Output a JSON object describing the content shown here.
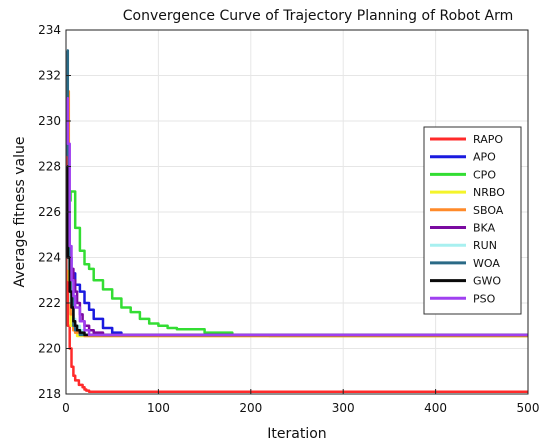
{
  "chart_data": {
    "type": "line",
    "title": "Convergence Curve of Trajectory Planning of Robot Arm",
    "xlabel": "Iteration",
    "ylabel": "Average fitness value",
    "xlim": [
      0,
      500
    ],
    "ylim": [
      218,
      234
    ],
    "xticks": [
      0,
      100,
      200,
      300,
      400,
      500
    ],
    "yticks": [
      218,
      220,
      222,
      224,
      226,
      228,
      230,
      232,
      234
    ],
    "grid": true,
    "legend_position": "right",
    "series": [
      {
        "name": "RAPO",
        "color": "#ff2a2a",
        "x": [
          1,
          2,
          4,
          6,
          8,
          10,
          14,
          18,
          20,
          22,
          25,
          30,
          500
        ],
        "y": [
          229.5,
          221.0,
          220.0,
          219.2,
          218.8,
          218.6,
          218.4,
          218.3,
          218.2,
          218.15,
          218.1,
          218.1,
          218.1
        ]
      },
      {
        "name": "APO",
        "color": "#1a1adf",
        "x": [
          1,
          3,
          6,
          10,
          15,
          20,
          25,
          30,
          40,
          50,
          60,
          500
        ],
        "y": [
          226.0,
          224.0,
          223.3,
          222.8,
          222.5,
          222.0,
          221.7,
          221.3,
          220.9,
          220.7,
          220.6,
          220.6
        ]
      },
      {
        "name": "CPO",
        "color": "#33dd33",
        "x": [
          1,
          5,
          10,
          15,
          20,
          25,
          30,
          40,
          50,
          60,
          70,
          80,
          90,
          100,
          110,
          120,
          150,
          180,
          200,
          220,
          250,
          500
        ],
        "y": [
          226.5,
          226.9,
          225.3,
          224.3,
          223.7,
          223.5,
          223.0,
          222.6,
          222.2,
          221.8,
          221.6,
          221.3,
          221.1,
          221.0,
          220.9,
          220.85,
          220.7,
          220.6,
          220.6,
          220.55,
          220.55,
          220.55
        ]
      },
      {
        "name": "NRBO",
        "color": "#f4f42a",
        "x": [
          1,
          3,
          5,
          8,
          10,
          12,
          500
        ],
        "y": [
          227.0,
          223.0,
          221.0,
          220.8,
          220.7,
          220.55,
          220.55
        ]
      },
      {
        "name": "SBOA",
        "color": "#ff8a2a",
        "x": [
          1,
          3,
          5,
          8,
          10,
          15,
          20,
          500
        ],
        "y": [
          231.3,
          224.0,
          221.5,
          220.8,
          220.7,
          220.6,
          220.55,
          220.55
        ]
      },
      {
        "name": "BKA",
        "color": "#7a0aa0",
        "x": [
          1,
          3,
          5,
          8,
          10,
          12,
          15,
          18,
          20,
          25,
          30,
          40,
          500
        ],
        "y": [
          226.0,
          224.5,
          223.5,
          223.0,
          222.5,
          222.0,
          221.5,
          221.2,
          221.0,
          220.8,
          220.7,
          220.6,
          220.6
        ]
      },
      {
        "name": "RUN",
        "color": "#a8f0f0",
        "x": [
          1,
          3,
          5,
          8,
          10,
          15,
          20,
          500
        ],
        "y": [
          227.5,
          223.5,
          222.0,
          221.3,
          221.0,
          220.8,
          220.6,
          220.6
        ]
      },
      {
        "name": "WOA",
        "color": "#2a6a86",
        "x": [
          1,
          2,
          3,
          4,
          5,
          8,
          10,
          15,
          500
        ],
        "y": [
          233.1,
          228.5,
          226.0,
          224.0,
          222.5,
          221.0,
          220.8,
          220.6,
          220.6
        ]
      },
      {
        "name": "GWO",
        "color": "#0a0a0a",
        "x": [
          1,
          2,
          4,
          6,
          8,
          10,
          12,
          15,
          20,
          500
        ],
        "y": [
          228.0,
          224.0,
          222.5,
          221.8,
          221.2,
          221.0,
          220.8,
          220.7,
          220.6,
          220.6
        ]
      },
      {
        "name": "PSO",
        "color": "#a040f0",
        "x": [
          1,
          2,
          4,
          6,
          8,
          10,
          15,
          20,
          25,
          500
        ],
        "y": [
          231.0,
          229.0,
          224.5,
          223.0,
          222.3,
          221.8,
          221.2,
          220.8,
          220.6,
          220.6
        ]
      }
    ]
  }
}
